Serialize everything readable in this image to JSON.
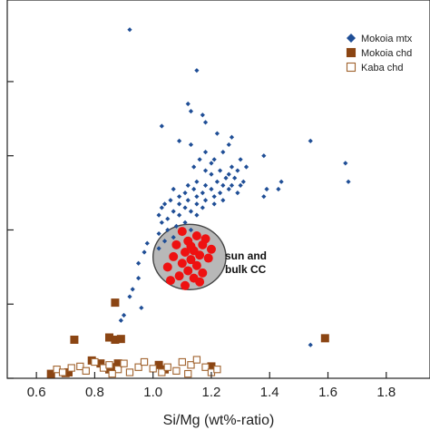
{
  "chart_data": {
    "type": "scatter",
    "title": "",
    "xlabel": "Si/Mg (wt%-ratio)",
    "ylabel": "",
    "xlim": [
      0.5,
      1.95
    ],
    "ylim": [
      0,
      5.1
    ],
    "x_ticks": [
      "0.6",
      "0.8",
      "1.0",
      "1.2",
      "1.4",
      "1.6",
      "1.8"
    ],
    "x_tick_values": [
      0.6,
      0.8,
      1.0,
      1.2,
      1.4,
      1.6,
      1.8
    ],
    "y_ticks": [
      "",
      "1",
      "2",
      "3",
      "4"
    ],
    "y_tick_values": [
      0,
      1,
      2,
      3,
      4
    ],
    "y_tick_labels_visible": [
      false,
      false,
      false,
      false,
      false
    ],
    "grid": false,
    "legend_position": "top-right",
    "legend": [
      {
        "label": "Mokoia mtx",
        "marker": "diamond",
        "color": "#1f4e96",
        "filled": true
      },
      {
        "label": "Mokoia chd",
        "marker": "square",
        "color": "#8b4513",
        "filled": true
      },
      {
        "label": "Kaba chd",
        "marker": "square",
        "color": "#a0622d",
        "filled": false
      }
    ],
    "annotation": {
      "line1": "sun and",
      "line2": "bulk CC",
      "ellipse": {
        "cx": 1.125,
        "cy": 1.635,
        "rx": 0.125,
        "ry": 0.44,
        "fill": "#b8b8b8",
        "stroke": "#444444"
      }
    },
    "series": [
      {
        "name": "Mokoia mtx",
        "marker": "diamond",
        "color": "#1f4e96",
        "points": [
          [
            0.92,
            4.7
          ],
          [
            1.15,
            4.15
          ],
          [
            1.12,
            3.7
          ],
          [
            1.13,
            3.6
          ],
          [
            1.17,
            3.55
          ],
          [
            1.03,
            3.4
          ],
          [
            1.18,
            3.45
          ],
          [
            1.22,
            3.3
          ],
          [
            1.27,
            3.25
          ],
          [
            1.09,
            3.2
          ],
          [
            1.13,
            3.15
          ],
          [
            1.26,
            3.15
          ],
          [
            1.18,
            3.05
          ],
          [
            1.24,
            3.05
          ],
          [
            1.38,
            3.0
          ],
          [
            1.16,
            2.95
          ],
          [
            1.21,
            2.95
          ],
          [
            1.3,
            2.95
          ],
          [
            1.2,
            2.9
          ],
          [
            1.27,
            2.85
          ],
          [
            1.32,
            2.85
          ],
          [
            1.14,
            2.85
          ],
          [
            1.18,
            2.8
          ],
          [
            1.23,
            2.8
          ],
          [
            1.26,
            2.75
          ],
          [
            1.29,
            2.8
          ],
          [
            1.2,
            2.75
          ],
          [
            1.25,
            2.7
          ],
          [
            1.28,
            2.7
          ],
          [
            1.31,
            2.65
          ],
          [
            1.22,
            2.65
          ],
          [
            1.15,
            2.65
          ],
          [
            1.12,
            2.6
          ],
          [
            1.18,
            2.6
          ],
          [
            1.24,
            2.6
          ],
          [
            1.27,
            2.6
          ],
          [
            1.44,
            2.65
          ],
          [
            1.07,
            2.55
          ],
          [
            1.14,
            2.55
          ],
          [
            1.2,
            2.55
          ],
          [
            1.26,
            2.55
          ],
          [
            1.3,
            2.6
          ],
          [
            1.11,
            2.5
          ],
          [
            1.17,
            2.5
          ],
          [
            1.23,
            2.5
          ],
          [
            1.29,
            2.5
          ],
          [
            1.43,
            2.55
          ],
          [
            1.39,
            2.55
          ],
          [
            1.09,
            2.45
          ],
          [
            1.15,
            2.45
          ],
          [
            1.21,
            2.45
          ],
          [
            1.24,
            2.4
          ],
          [
            1.38,
            2.45
          ],
          [
            1.06,
            2.4
          ],
          [
            1.12,
            2.4
          ],
          [
            1.18,
            2.4
          ],
          [
            1.04,
            2.35
          ],
          [
            1.09,
            2.35
          ],
          [
            1.15,
            2.35
          ],
          [
            1.21,
            2.35
          ],
          [
            1.03,
            2.3
          ],
          [
            1.11,
            2.3
          ],
          [
            1.17,
            2.3
          ],
          [
            1.07,
            2.25
          ],
          [
            1.13,
            2.25
          ],
          [
            1.02,
            2.2
          ],
          [
            1.09,
            2.2
          ],
          [
            1.15,
            2.2
          ],
          [
            1.05,
            2.15
          ],
          [
            1.11,
            2.1
          ],
          [
            1.03,
            2.1
          ],
          [
            1.08,
            2.05
          ],
          [
            1.13,
            2.0
          ],
          [
            1.05,
            2.0
          ],
          [
            1.02,
            1.95
          ],
          [
            1.1,
            1.95
          ],
          [
            1.07,
            1.9
          ],
          [
            1.04,
            1.85
          ],
          [
            0.98,
            1.82
          ],
          [
            1.02,
            1.75
          ],
          [
            0.97,
            1.7
          ],
          [
            0.95,
            1.55
          ],
          [
            0.93,
            1.2
          ],
          [
            0.92,
            1.1
          ],
          [
            0.95,
            1.35
          ],
          [
            0.9,
            0.85
          ],
          [
            0.89,
            0.78
          ],
          [
            0.96,
            0.95
          ],
          [
            1.66,
            2.9
          ],
          [
            1.67,
            2.65
          ],
          [
            1.54,
            3.2
          ],
          [
            1.54,
            0.45
          ]
        ]
      },
      {
        "name": "Mokoia chd",
        "marker": "square",
        "color": "#8b4513",
        "points": [
          [
            0.87,
            1.02
          ],
          [
            0.73,
            0.52
          ],
          [
            0.85,
            0.55
          ],
          [
            0.87,
            0.52
          ],
          [
            0.89,
            0.53
          ],
          [
            0.79,
            0.24
          ],
          [
            0.82,
            0.2
          ],
          [
            0.85,
            0.12
          ],
          [
            0.86,
            0.15
          ],
          [
            0.88,
            0.2
          ],
          [
            0.65,
            0.06
          ],
          [
            0.7,
            0.07
          ],
          [
            0.71,
            0.08
          ],
          [
            1.02,
            0.18
          ],
          [
            1.04,
            0.12
          ],
          [
            1.2,
            0.16
          ],
          [
            1.59,
            0.54
          ]
        ]
      },
      {
        "name": "Kaba chd",
        "marker": "open-square",
        "color": "#a0622d",
        "points": [
          [
            0.67,
            0.12
          ],
          [
            0.69,
            0.08
          ],
          [
            0.72,
            0.14
          ],
          [
            0.75,
            0.16
          ],
          [
            0.77,
            0.1
          ],
          [
            0.8,
            0.22
          ],
          [
            0.83,
            0.14
          ],
          [
            0.85,
            0.18
          ],
          [
            0.88,
            0.12
          ],
          [
            0.9,
            0.2
          ],
          [
            0.92,
            0.08
          ],
          [
            0.95,
            0.15
          ],
          [
            0.97,
            0.22
          ],
          [
            1.0,
            0.13
          ],
          [
            1.03,
            0.08
          ],
          [
            1.05,
            0.15
          ],
          [
            1.08,
            0.1
          ],
          [
            1.1,
            0.22
          ],
          [
            1.13,
            0.18
          ],
          [
            1.15,
            0.25
          ],
          [
            1.18,
            0.15
          ],
          [
            1.2,
            0.08
          ],
          [
            1.22,
            0.12
          ],
          [
            0.86,
            0.06
          ],
          [
            1.12,
            0.06
          ]
        ]
      },
      {
        "name": "sun and bulk CC",
        "marker": "circle",
        "color": "#ee1111",
        "points": [
          [
            1.1,
            1.98
          ],
          [
            1.15,
            1.92
          ],
          [
            1.18,
            1.88
          ],
          [
            1.12,
            1.85
          ],
          [
            1.17,
            1.8
          ],
          [
            1.08,
            1.8
          ],
          [
            1.2,
            1.74
          ],
          [
            1.14,
            1.72
          ],
          [
            1.11,
            1.7
          ],
          [
            1.16,
            1.66
          ],
          [
            1.07,
            1.64
          ],
          [
            1.13,
            1.6
          ],
          [
            1.19,
            1.62
          ],
          [
            1.1,
            1.55
          ],
          [
            1.15,
            1.52
          ],
          [
            1.05,
            1.5
          ],
          [
            1.12,
            1.45
          ],
          [
            1.17,
            1.42
          ],
          [
            1.09,
            1.38
          ],
          [
            1.14,
            1.35
          ],
          [
            1.06,
            1.32
          ],
          [
            1.11,
            1.25
          ],
          [
            1.16,
            1.3
          ],
          [
            1.13,
            1.78
          ]
        ]
      }
    ]
  }
}
